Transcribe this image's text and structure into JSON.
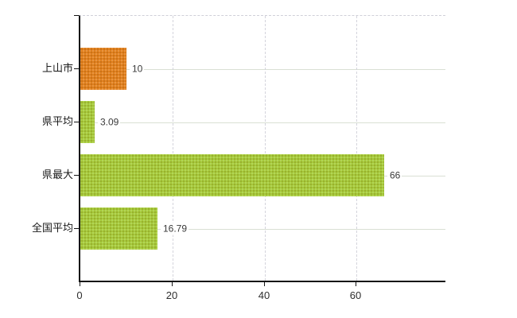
{
  "chart_data": {
    "type": "bar",
    "orientation": "horizontal",
    "categories": [
      "上山市",
      "県平均",
      "県最大",
      "全国平均"
    ],
    "values": [
      10,
      3.09,
      66,
      16.79
    ],
    "value_labels": [
      "10",
      "3.09",
      "66",
      "16.79"
    ],
    "series": [
      {
        "name": "value",
        "values": [
          10,
          3.09,
          66,
          16.79
        ],
        "bar_colors": [
          "#e2811e",
          "#a6cb3a",
          "#a6cb3a",
          "#a6cb3a"
        ]
      }
    ],
    "x_ticks": [
      0,
      20,
      40,
      60
    ],
    "x_tick_labels": [
      "0",
      "20",
      "40",
      "60"
    ],
    "xlim": [
      0,
      79.3
    ],
    "ylabel": "",
    "xlabel": "",
    "legend": "none",
    "grid": {
      "horizontal": "solid",
      "vertical": "dashed",
      "plot_top_border": "dashed"
    }
  },
  "colors": {
    "bar_orange": "#e2811e",
    "bar_green": "#a6cb3a",
    "axis": "#141414",
    "gridline_solid": "#d9e0d4",
    "gridline_dashed": "#d4d4dc",
    "value_text": "#3a3a3a",
    "category_text": "#1a1a1a",
    "tick_text": "#2e2e2e",
    "background": "#ffffff"
  }
}
